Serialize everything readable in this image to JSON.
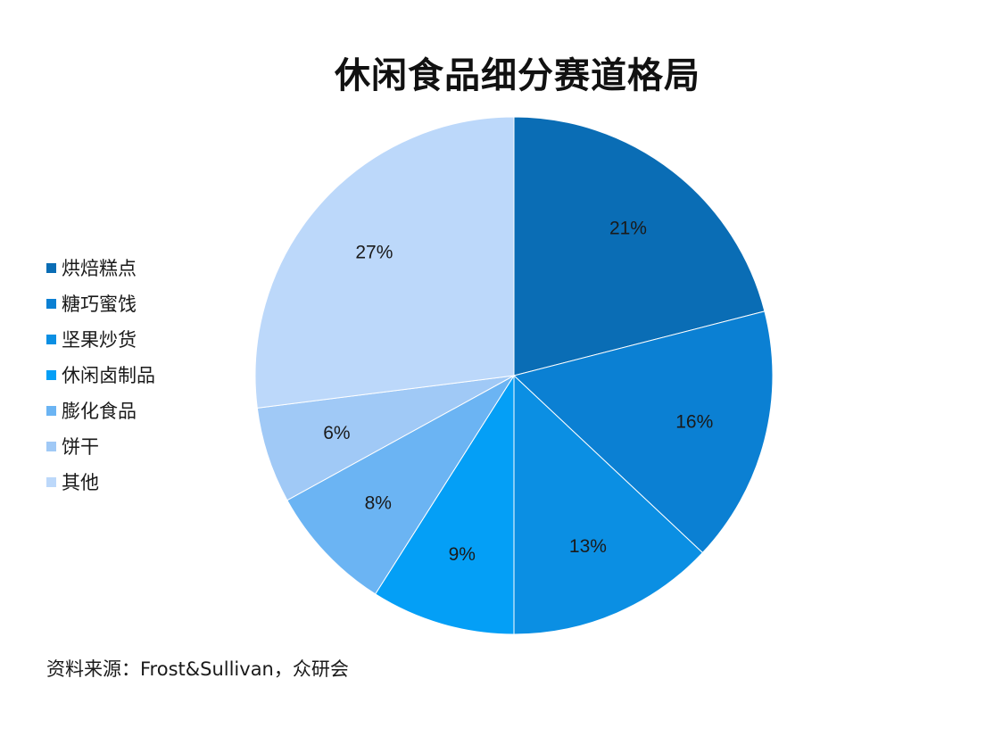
{
  "chart_data": {
    "type": "pie",
    "title": "休闲食品细分赛道格局",
    "slices": [
      {
        "name": "烘焙糕点",
        "value": 21,
        "label": "21%",
        "color": "#0a6db5"
      },
      {
        "name": "糖巧蜜饯",
        "value": 16,
        "label": "16%",
        "color": "#0b80d3"
      },
      {
        "name": "坚果炒货",
        "value": 13,
        "label": "13%",
        "color": "#0b8fe3"
      },
      {
        "name": "休闲卤制品",
        "value": 9,
        "label": "9%",
        "color": "#049ff6"
      },
      {
        "name": "膨化食品",
        "value": 8,
        "label": "8%",
        "color": "#6bb4f3"
      },
      {
        "name": "饼干",
        "value": 6,
        "label": "6%",
        "color": "#a0c9f6"
      },
      {
        "name": "其他",
        "value": 27,
        "label": "27%",
        "color": "#bcd8fa"
      }
    ],
    "legend_position": "left"
  },
  "source": "资料来源：Frost&Sullivan，众研会"
}
